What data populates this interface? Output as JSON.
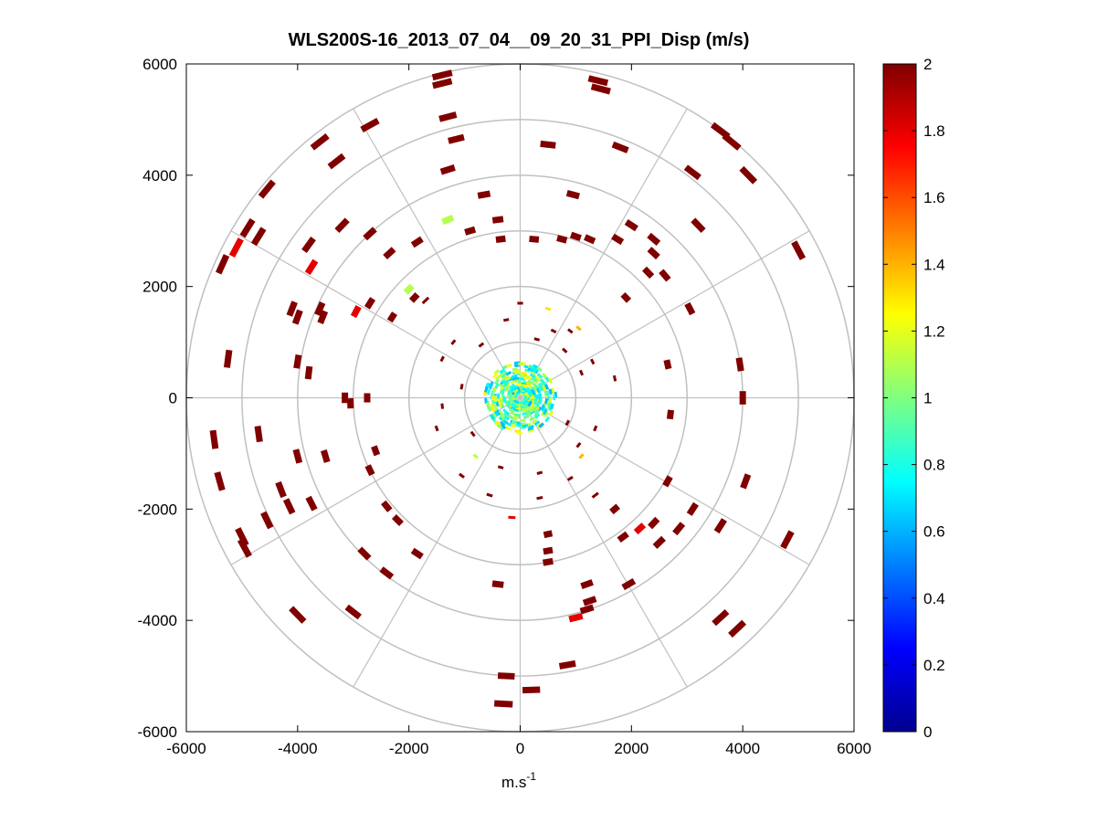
{
  "chart_data": {
    "type": "scatter",
    "title": "WLS200S-16_2013_07_04__09_20_31_PPI_Disp (m/s)",
    "xlabel": {
      "base": "m.s",
      "exponent": "-1"
    },
    "ylabel": "",
    "xlim": [
      -6000,
      6000
    ],
    "ylim": [
      -6000,
      6000
    ],
    "xticks": [
      -6000,
      -4000,
      -2000,
      0,
      2000,
      4000,
      6000
    ],
    "yticks": [
      -6000,
      -4000,
      -2000,
      0,
      2000,
      4000,
      6000
    ],
    "xtick_labels": [
      "-6000",
      "-4000",
      "-2000",
      "0",
      "2000",
      "4000",
      "6000"
    ],
    "ytick_labels": [
      "-6000",
      "-4000",
      "-2000",
      "0",
      "2000",
      "4000",
      "6000"
    ],
    "polar_grid": {
      "ring_radii": [
        1000,
        2000,
        3000,
        4000,
        5000,
        6000
      ],
      "spoke_angles_deg": [
        0,
        30,
        60,
        90,
        120,
        150,
        180,
        210,
        240,
        270,
        300,
        330
      ]
    },
    "colorbar": {
      "colormap": "jet",
      "min": 0,
      "max": 2,
      "ticks": [
        0,
        0.2,
        0.4,
        0.6,
        0.8,
        1,
        1.2,
        1.4,
        1.6,
        1.8,
        2
      ],
      "tick_labels": [
        "0",
        "0.2",
        "0.4",
        "0.6",
        "0.8",
        "1",
        "1.2",
        "1.4",
        "1.6",
        "1.8",
        "2"
      ]
    },
    "points": [
      {
        "x": -1400,
        "y": 5800,
        "v": 2
      },
      {
        "x": -1400,
        "y": 5650,
        "v": 2
      },
      {
        "x": 1400,
        "y": 5700,
        "v": 2
      },
      {
        "x": 1450,
        "y": 5550,
        "v": 2
      },
      {
        "x": -1300,
        "y": 5050,
        "v": 2
      },
      {
        "x": -2700,
        "y": 4900,
        "v": 2
      },
      {
        "x": -3600,
        "y": 4600,
        "v": 2
      },
      {
        "x": 3600,
        "y": 4800,
        "v": 2
      },
      {
        "x": 3800,
        "y": 4600,
        "v": 2
      },
      {
        "x": -1150,
        "y": 4650,
        "v": 2
      },
      {
        "x": 500,
        "y": 4550,
        "v": 2
      },
      {
        "x": 1800,
        "y": 4500,
        "v": 2
      },
      {
        "x": -3300,
        "y": 4250,
        "v": 2
      },
      {
        "x": -1300,
        "y": 4100,
        "v": 2
      },
      {
        "x": 3100,
        "y": 4050,
        "v": 2
      },
      {
        "x": 4100,
        "y": 4000,
        "v": 2
      },
      {
        "x": -4550,
        "y": 3750,
        "v": 2
      },
      {
        "x": -650,
        "y": 3650,
        "v": 2
      },
      {
        "x": 950,
        "y": 3650,
        "v": 2
      },
      {
        "x": -1300,
        "y": 3200,
        "v": 1.1
      },
      {
        "x": -400,
        "y": 3200,
        "v": 2
      },
      {
        "x": 2000,
        "y": 3100,
        "v": 2
      },
      {
        "x": 3200,
        "y": 3100,
        "v": 2
      },
      {
        "x": -3200,
        "y": 3100,
        "v": 2
      },
      {
        "x": -4900,
        "y": 3050,
        "v": 2
      },
      {
        "x": -4700,
        "y": 2900,
        "v": 2
      },
      {
        "x": -2700,
        "y": 2950,
        "v": 2
      },
      {
        "x": -900,
        "y": 3000,
        "v": 2
      },
      {
        "x": -350,
        "y": 2850,
        "v": 2
      },
      {
        "x": 250,
        "y": 2850,
        "v": 2
      },
      {
        "x": 750,
        "y": 2850,
        "v": 2
      },
      {
        "x": 1250,
        "y": 2850,
        "v": 2
      },
      {
        "x": 1750,
        "y": 2850,
        "v": 2
      },
      {
        "x": 2400,
        "y": 2850,
        "v": 2
      },
      {
        "x": 1000,
        "y": 2900,
        "v": 2
      },
      {
        "x": -5100,
        "y": 2700,
        "v": 1.8
      },
      {
        "x": -1850,
        "y": 2800,
        "v": 2
      },
      {
        "x": -3800,
        "y": 2750,
        "v": 2
      },
      {
        "x": -2350,
        "y": 2600,
        "v": 2
      },
      {
        "x": 2400,
        "y": 2600,
        "v": 2
      },
      {
        "x": 5000,
        "y": 2650,
        "v": 2
      },
      {
        "x": -5350,
        "y": 2400,
        "v": 2
      },
      {
        "x": -3750,
        "y": 2350,
        "v": 1.8
      },
      {
        "x": 2300,
        "y": 2250,
        "v": 2
      },
      {
        "x": 2600,
        "y": 2200,
        "v": 2
      },
      {
        "x": -2000,
        "y": 1950,
        "v": 1.1
      },
      {
        "x": -1900,
        "y": 1800,
        "v": 2
      },
      {
        "x": -1700,
        "y": 1750,
        "v": 2
      },
      {
        "x": 1900,
        "y": 1800,
        "v": 2
      },
      {
        "x": -4100,
        "y": 1600,
        "v": 2
      },
      {
        "x": -3600,
        "y": 1600,
        "v": 2
      },
      {
        "x": -2700,
        "y": 1700,
        "v": 2
      },
      {
        "x": -2950,
        "y": 1550,
        "v": 1.8
      },
      {
        "x": 3050,
        "y": 1600,
        "v": 2
      },
      {
        "x": -4000,
        "y": 1450,
        "v": 2
      },
      {
        "x": -3550,
        "y": 1450,
        "v": 2
      },
      {
        "x": -2300,
        "y": 1450,
        "v": 2
      },
      {
        "x": -5250,
        "y": 700,
        "v": 2
      },
      {
        "x": -4000,
        "y": 650,
        "v": 2
      },
      {
        "x": -3800,
        "y": 450,
        "v": 2
      },
      {
        "x": 2650,
        "y": 600,
        "v": 2
      },
      {
        "x": 3950,
        "y": 600,
        "v": 2
      },
      {
        "x": -3150,
        "y": 0,
        "v": 2
      },
      {
        "x": -2750,
        "y": 0,
        "v": 2
      },
      {
        "x": -3050,
        "y": -100,
        "v": 2
      },
      {
        "x": 4000,
        "y": 0,
        "v": 2
      },
      {
        "x": 2700,
        "y": -300,
        "v": 2
      },
      {
        "x": -5500,
        "y": -750,
        "v": 2
      },
      {
        "x": -4700,
        "y": -650,
        "v": 2
      },
      {
        "x": -4000,
        "y": -1050,
        "v": 2
      },
      {
        "x": -3500,
        "y": -1050,
        "v": 2
      },
      {
        "x": -2600,
        "y": -950,
        "v": 2
      },
      {
        "x": -2700,
        "y": -1300,
        "v": 2
      },
      {
        "x": -5400,
        "y": -1500,
        "v": 2
      },
      {
        "x": -4300,
        "y": -1650,
        "v": 2
      },
      {
        "x": -4150,
        "y": -1950,
        "v": 2
      },
      {
        "x": -3750,
        "y": -1900,
        "v": 2
      },
      {
        "x": -2400,
        "y": -1950,
        "v": 2
      },
      {
        "x": -2200,
        "y": -2200,
        "v": 2
      },
      {
        "x": 4050,
        "y": -1500,
        "v": 2
      },
      {
        "x": 2650,
        "y": -1500,
        "v": 2
      },
      {
        "x": 1350,
        "y": -1750,
        "v": 2
      },
      {
        "x": 1700,
        "y": -2000,
        "v": 2
      },
      {
        "x": 3100,
        "y": -2000,
        "v": 2
      },
      {
        "x": 2400,
        "y": -2250,
        "v": 2
      },
      {
        "x": 3600,
        "y": -2300,
        "v": 2
      },
      {
        "x": 2150,
        "y": -2350,
        "v": 1.8
      },
      {
        "x": 2850,
        "y": -2350,
        "v": 2
      },
      {
        "x": 1850,
        "y": -2500,
        "v": 2
      },
      {
        "x": -4550,
        "y": -2200,
        "v": 2
      },
      {
        "x": -5000,
        "y": -2500,
        "v": 2
      },
      {
        "x": -4950,
        "y": -2700,
        "v": 2
      },
      {
        "x": -2800,
        "y": -2800,
        "v": 2
      },
      {
        "x": -1850,
        "y": -2800,
        "v": 2
      },
      {
        "x": 2500,
        "y": -2600,
        "v": 2
      },
      {
        "x": 4800,
        "y": -2550,
        "v": 2
      },
      {
        "x": 500,
        "y": -2450,
        "v": 2
      },
      {
        "x": 500,
        "y": -2750,
        "v": 2
      },
      {
        "x": 500,
        "y": -2950,
        "v": 2
      },
      {
        "x": -2400,
        "y": -3150,
        "v": 2
      },
      {
        "x": 1200,
        "y": -3350,
        "v": 2
      },
      {
        "x": -400,
        "y": -3350,
        "v": 2
      },
      {
        "x": 1950,
        "y": -3350,
        "v": 2
      },
      {
        "x": 1250,
        "y": -3650,
        "v": 2
      },
      {
        "x": 1200,
        "y": -3800,
        "v": 2
      },
      {
        "x": 1000,
        "y": -3950,
        "v": 1.8
      },
      {
        "x": -4000,
        "y": -3900,
        "v": 2
      },
      {
        "x": -3000,
        "y": -3850,
        "v": 2
      },
      {
        "x": 3600,
        "y": -3950,
        "v": 2
      },
      {
        "x": 3900,
        "y": -4150,
        "v": 2
      },
      {
        "x": 850,
        "y": -4800,
        "v": 2
      },
      {
        "x": -250,
        "y": -5000,
        "v": 2
      },
      {
        "x": 200,
        "y": -5250,
        "v": 2
      },
      {
        "x": -300,
        "y": -5500,
        "v": 2
      },
      {
        "x": -150,
        "y": -2150,
        "v": 1.8
      },
      {
        "x": -800,
        "y": -1050,
        "v": 1.1
      },
      {
        "x": 1100,
        "y": -1050,
        "v": 1.4
      },
      {
        "x": 1050,
        "y": 1250,
        "v": 1.4
      },
      {
        "x": 500,
        "y": 1600,
        "v": 1.3
      },
      {
        "x": 900,
        "y": 1200,
        "v": 2
      },
      {
        "x": -1200,
        "y": 1000,
        "v": 2
      },
      {
        "x": -1400,
        "y": 700,
        "v": 2
      },
      {
        "x": -700,
        "y": 950,
        "v": 2
      },
      {
        "x": 600,
        "y": 1200,
        "v": 2
      },
      {
        "x": 1300,
        "y": 650,
        "v": 2
      },
      {
        "x": 1100,
        "y": 450,
        "v": 2
      },
      {
        "x": 1700,
        "y": 350,
        "v": 2
      },
      {
        "x": -1400,
        "y": -150,
        "v": 2
      },
      {
        "x": -1050,
        "y": 200,
        "v": 2
      },
      {
        "x": -1500,
        "y": -550,
        "v": 2
      },
      {
        "x": -850,
        "y": -650,
        "v": 2
      },
      {
        "x": 850,
        "y": -450,
        "v": 2
      },
      {
        "x": 1350,
        "y": -550,
        "v": 2
      },
      {
        "x": 1050,
        "y": -850,
        "v": 2
      },
      {
        "x": -350,
        "y": -1250,
        "v": 2
      },
      {
        "x": 350,
        "y": -1350,
        "v": 2
      },
      {
        "x": -550,
        "y": -1750,
        "v": 2
      },
      {
        "x": 350,
        "y": -1800,
        "v": 2
      },
      {
        "x": 900,
        "y": -1450,
        "v": 2
      },
      {
        "x": -1050,
        "y": -1400,
        "v": 2
      },
      {
        "x": 800,
        "y": 850,
        "v": 2
      },
      {
        "x": 300,
        "y": 1050,
        "v": 2
      },
      {
        "x": -250,
        "y": 1400,
        "v": 2
      },
      {
        "x": 0,
        "y": 1700,
        "v": 2
      }
    ]
  }
}
